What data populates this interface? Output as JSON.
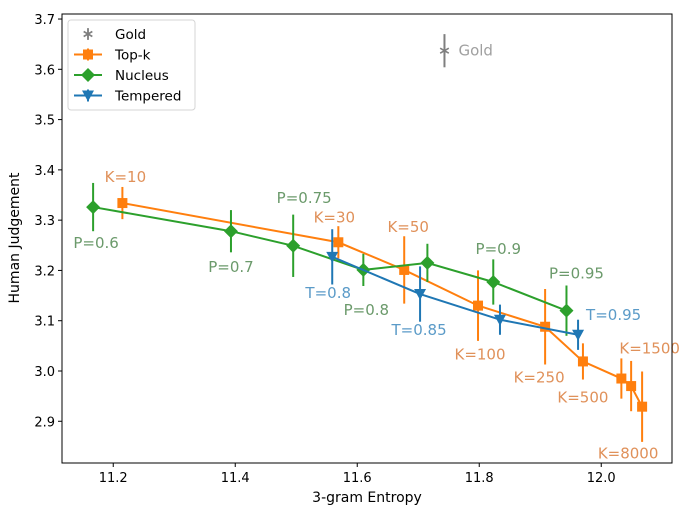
{
  "chart_data": {
    "type": "line",
    "title": "",
    "xlabel": "3-gram Entropy",
    "ylabel": "Human Judgement",
    "xlim": [
      11.116,
      12.116
    ],
    "ylim": [
      2.817,
      3.71
    ],
    "xticks": [
      11.2,
      11.4,
      11.6,
      11.8,
      12.0
    ],
    "xtick_labels": [
      "11.2",
      "11.4",
      "11.6",
      "11.8",
      "12.0"
    ],
    "yticks": [
      2.9,
      3.0,
      3.1,
      3.2,
      3.3,
      3.4,
      3.5,
      3.6,
      3.7
    ],
    "ytick_labels": [
      "2.9",
      "3.0",
      "3.1",
      "3.2",
      "3.3",
      "3.4",
      "3.5",
      "3.6",
      "3.7"
    ],
    "grid": false,
    "legend_position": "top-left",
    "series": [
      {
        "name": "Gold",
        "color": "#7f7f7f",
        "marker": "star",
        "line": false,
        "label_color": "#a0a0a0",
        "points": [
          {
            "x": 11.743,
            "y": 3.637,
            "err": 0.033,
            "label": "Gold",
            "label_dx": 14,
            "label_dy": 5,
            "anchor": "start"
          }
        ]
      },
      {
        "name": "Top-k",
        "color": "#ff7f0e",
        "marker": "square",
        "line": true,
        "label_color": "#e0915a",
        "points": [
          {
            "x": 11.215,
            "y": 3.334,
            "err": 0.032,
            "label": "K=10",
            "label_dx": 3,
            "label_dy": -21,
            "anchor": "middle"
          },
          {
            "x": 11.569,
            "y": 3.256,
            "err": 0.032,
            "label": "K=30",
            "label_dx": -4,
            "label_dy": -20,
            "anchor": "middle"
          },
          {
            "x": 11.677,
            "y": 3.201,
            "err": 0.067,
            "label": "K=50",
            "label_dx": 4,
            "label_dy": -38,
            "anchor": "middle"
          },
          {
            "x": 11.798,
            "y": 3.13,
            "err": 0.07,
            "label": "K=100",
            "label_dx": 2,
            "label_dy": 54,
            "anchor": "middle"
          },
          {
            "x": 11.908,
            "y": 3.088,
            "err": 0.075,
            "label": "K=250",
            "label_dx": -6,
            "label_dy": 56,
            "anchor": "middle"
          },
          {
            "x": 11.97,
            "y": 3.019,
            "err": 0.036,
            "label": "K=500",
            "label_dx": 0,
            "label_dy": 41,
            "anchor": "middle"
          },
          {
            "x": 12.033,
            "y": 2.985,
            "err": 0.04,
            "label": "K=1500",
            "label_dx": -2,
            "label_dy": -25,
            "anchor": "start"
          },
          {
            "x": 12.049,
            "y": 2.97,
            "err": 0.05,
            "label": "",
            "label_dx": 0,
            "label_dy": 0,
            "anchor": "middle"
          },
          {
            "x": 12.067,
            "y": 2.929,
            "err": 0.07,
            "label": "K=8000",
            "label_dx": -14,
            "label_dy": 52,
            "anchor": "middle"
          }
        ]
      },
      {
        "name": "Nucleus",
        "color": "#2ca02c",
        "marker": "diamond",
        "line": true,
        "label_color": "#6b9a6b",
        "points": [
          {
            "x": 11.167,
            "y": 3.326,
            "err": 0.048,
            "label": "P=0.6",
            "label_dx": 3,
            "label_dy": 41,
            "anchor": "middle"
          },
          {
            "x": 11.393,
            "y": 3.278,
            "err": 0.042,
            "label": "P=0.7",
            "label_dx": 0,
            "label_dy": 41,
            "anchor": "middle"
          },
          {
            "x": 11.495,
            "y": 3.249,
            "err": 0.062,
            "label": "P=0.75",
            "label_dx": 11,
            "label_dy": -43,
            "anchor": "middle"
          },
          {
            "x": 11.61,
            "y": 3.201,
            "err": 0.032,
            "label": "P=0.8",
            "label_dx": 3,
            "label_dy": 45,
            "anchor": "middle"
          },
          {
            "x": 11.715,
            "y": 3.215,
            "err": 0.038,
            "label": "",
            "label_dx": 0,
            "label_dy": 0,
            "anchor": "middle"
          },
          {
            "x": 11.823,
            "y": 3.177,
            "err": 0.045,
            "label": "P=0.9",
            "label_dx": 5,
            "label_dy": -28,
            "anchor": "middle"
          },
          {
            "x": 11.943,
            "y": 3.12,
            "err": 0.05,
            "label": "P=0.95",
            "label_dx": 10,
            "label_dy": -32,
            "anchor": "middle"
          }
        ]
      },
      {
        "name": "Tempered",
        "color": "#1f77b4",
        "marker": "triangle-down",
        "line": true,
        "label_color": "#5b9bc8",
        "points": [
          {
            "x": 11.559,
            "y": 3.227,
            "err": 0.055,
            "label": "T=0.8",
            "label_dx": -4,
            "label_dy": 41,
            "anchor": "middle"
          },
          {
            "x": 11.703,
            "y": 3.153,
            "err": 0.055,
            "label": "T=0.85",
            "label_dx": -1,
            "label_dy": 41,
            "anchor": "middle"
          },
          {
            "x": 11.834,
            "y": 3.102,
            "err": 0.03,
            "label": "",
            "label_dx": 0,
            "label_dy": 0,
            "anchor": "middle"
          },
          {
            "x": 11.962,
            "y": 3.072,
            "err": 0.03,
            "label": "T=0.95",
            "label_dx": 8,
            "label_dy": -15,
            "anchor": "start"
          }
        ]
      }
    ]
  }
}
